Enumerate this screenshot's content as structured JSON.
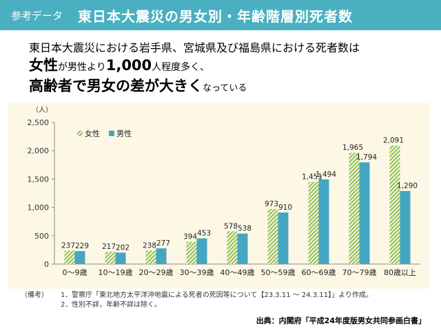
{
  "header": {
    "tag": "参考データ",
    "title": "東日本大震災の男女別・年齢階層別死者数"
  },
  "message": {
    "line1": "東日本大震災における岩手県、宮城県及び福島県における死者数は",
    "line2_em": "女性",
    "line2_mid": "が男性より",
    "line2_num": "1,000",
    "line2_tail": "人程度多く、",
    "line3_em": "高齢者で男女の差が大きく",
    "line3_tail": "なっている"
  },
  "chart_data": {
    "type": "bar",
    "ylabel": "（人）",
    "ylim": [
      0,
      2500
    ],
    "yticks": [
      "0",
      "500",
      "1,000",
      "1,500",
      "2,000",
      "2,500"
    ],
    "categories": [
      "0～9歳",
      "10～19歳",
      "20～29歳",
      "30～39歳",
      "40～49歳",
      "50～59歳",
      "60～69歳",
      "70～79歳",
      "80歳以上"
    ],
    "series": [
      {
        "name": "女性",
        "values": [
          237,
          217,
          238,
          394,
          578,
          973,
          1451,
          1965,
          2091
        ],
        "labels": [
          "237",
          "217",
          "238",
          "394",
          "578",
          "973",
          "1,451",
          "1,965",
          "2,091"
        ]
      },
      {
        "name": "男性",
        "values": [
          229,
          202,
          277,
          453,
          538,
          910,
          1494,
          1794,
          1290
        ],
        "labels": [
          "229",
          "202",
          "277",
          "453",
          "538",
          "910",
          "1,494",
          "1,794",
          "1,290"
        ]
      }
    ],
    "legend": "top-left",
    "grid": false,
    "colors": {
      "female": "#9cc45a",
      "male": "#45a6c2"
    }
  },
  "notes": {
    "label": "（備考）",
    "items": [
      {
        "num": "1．",
        "text": "警察庁「東北地方太平洋沖地震による死者の死因等について【23.3.11 ～ 24.3.11】」より作成。"
      },
      {
        "num": "2．",
        "text": "性別不詳，年齢不詳は除く。"
      }
    ]
  },
  "source": "出典：内閣府「平成24年度版男女共同参画白書」"
}
